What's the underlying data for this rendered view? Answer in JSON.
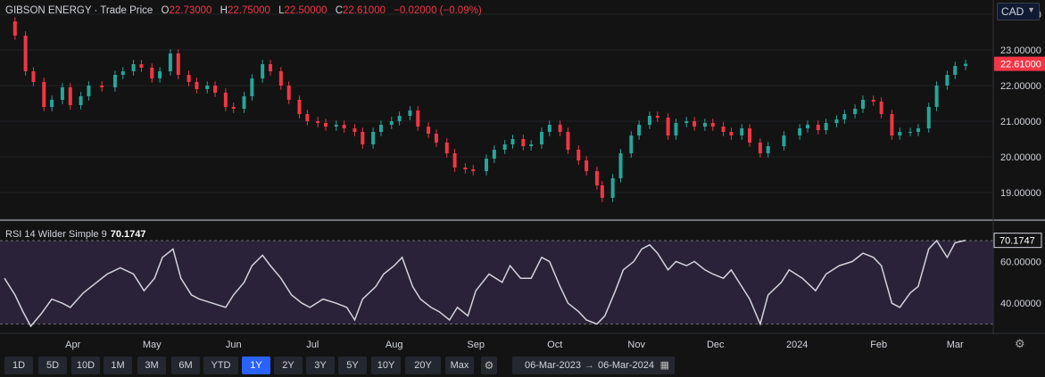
{
  "header": {
    "title": "GIBSON ENERGY · Trade Price",
    "open_label": "O",
    "open": "22.73000",
    "high_label": "H",
    "high": "22.75000",
    "low_label": "L",
    "low": "22.50000",
    "close_label": "C",
    "close": "22.61000",
    "change": "−0.02000 (−0.09%)"
  },
  "currency": {
    "value": "CAD",
    "icon": "chevron-down-icon"
  },
  "rsi": {
    "label": "RSI 14 Wilder Simple 9",
    "value": "70.1747"
  },
  "colors": {
    "up": "#26a69a",
    "down": "#f23645",
    "rsi_line": "#d1d4dc",
    "rsi_band": "#2a2238",
    "bg": "#131313"
  },
  "toolbar": {
    "periods": [
      "1D",
      "5D",
      "10D",
      "1M",
      "3M",
      "6M",
      "YTD",
      "1Y",
      "2Y",
      "3Y",
      "5Y",
      "10Y",
      "20Y",
      "Max"
    ],
    "selected": "1Y",
    "range_from": "06-Mar-2023",
    "range_sep": "→",
    "range_to": "06-Mar-2024"
  },
  "chart_data": [
    {
      "type": "candlestick",
      "title": "GIBSON ENERGY · Trade Price",
      "ylim": [
        18.4,
        24.1
      ],
      "y_ticks": [
        "24.00000",
        "23.00000",
        "22.00000",
        "21.00000",
        "20.00000",
        "19.00000"
      ],
      "last_price": "22.61000",
      "x_ticks": [
        "Apr",
        "May",
        "Jun",
        "Jul",
        "Aug",
        "Sep",
        "Oct",
        "Nov",
        "Dec",
        "2024",
        "Feb",
        "Mar"
      ],
      "x_range": [
        "2023-03-06",
        "2024-03-06"
      ],
      "close_points": [
        [
          "2023-03-06",
          23.8
        ],
        [
          "2023-03-10",
          23.4
        ],
        [
          "2023-03-14",
          22.4
        ],
        [
          "2023-03-17",
          22.1
        ],
        [
          "2023-03-21",
          21.4
        ],
        [
          "2023-03-24",
          21.6
        ],
        [
          "2023-03-28",
          21.95
        ],
        [
          "2023-03-31",
          21.45
        ],
        [
          "2023-04-04",
          21.7
        ],
        [
          "2023-04-07",
          22.0
        ],
        [
          "2023-04-12",
          21.95
        ],
        [
          "2023-04-17",
          22.3
        ],
        [
          "2023-04-20",
          22.4
        ],
        [
          "2023-04-24",
          22.6
        ],
        [
          "2023-04-27",
          22.5
        ],
        [
          "2023-05-01",
          22.2
        ],
        [
          "2023-05-04",
          22.4
        ],
        [
          "2023-05-08",
          22.9
        ],
        [
          "2023-05-11",
          22.3
        ],
        [
          "2023-05-15",
          22.1
        ],
        [
          "2023-05-18",
          21.9
        ],
        [
          "2023-05-22",
          22.0
        ],
        [
          "2023-05-25",
          21.8
        ],
        [
          "2023-05-29",
          21.4
        ],
        [
          "2023-06-01",
          21.35
        ],
        [
          "2023-06-05",
          21.7
        ],
        [
          "2023-06-08",
          22.2
        ],
        [
          "2023-06-12",
          22.6
        ],
        [
          "2023-06-15",
          22.4
        ],
        [
          "2023-06-19",
          22.0
        ],
        [
          "2023-06-22",
          21.6
        ],
        [
          "2023-06-26",
          21.2
        ],
        [
          "2023-06-29",
          21.0
        ],
        [
          "2023-07-03",
          20.95
        ],
        [
          "2023-07-06",
          20.85
        ],
        [
          "2023-07-10",
          20.9
        ],
        [
          "2023-07-13",
          20.8
        ],
        [
          "2023-07-17",
          20.7
        ],
        [
          "2023-07-20",
          20.35
        ],
        [
          "2023-07-24",
          20.7
        ],
        [
          "2023-07-27",
          20.9
        ],
        [
          "2023-07-31",
          21.0
        ],
        [
          "2023-08-03",
          21.15
        ],
        [
          "2023-08-07",
          21.3
        ],
        [
          "2023-08-10",
          20.85
        ],
        [
          "2023-08-14",
          20.65
        ],
        [
          "2023-08-17",
          20.4
        ],
        [
          "2023-08-21",
          20.1
        ],
        [
          "2023-08-24",
          19.7
        ],
        [
          "2023-08-28",
          19.65
        ],
        [
          "2023-08-31",
          19.6
        ],
        [
          "2023-09-05",
          19.95
        ],
        [
          "2023-09-08",
          20.2
        ],
        [
          "2023-09-12",
          20.35
        ],
        [
          "2023-09-15",
          20.5
        ],
        [
          "2023-09-19",
          20.3
        ],
        [
          "2023-09-22",
          20.35
        ],
        [
          "2023-09-26",
          20.7
        ],
        [
          "2023-09-29",
          20.9
        ],
        [
          "2023-10-03",
          20.7
        ],
        [
          "2023-10-06",
          20.2
        ],
        [
          "2023-10-10",
          19.9
        ],
        [
          "2023-10-13",
          19.6
        ],
        [
          "2023-10-17",
          19.2
        ],
        [
          "2023-10-19",
          18.85
        ],
        [
          "2023-10-23",
          19.4
        ],
        [
          "2023-10-26",
          20.1
        ],
        [
          "2023-10-30",
          20.6
        ],
        [
          "2023-11-02",
          20.9
        ],
        [
          "2023-11-06",
          21.15
        ],
        [
          "2023-11-09",
          21.1
        ],
        [
          "2023-11-13",
          20.6
        ],
        [
          "2023-11-16",
          20.95
        ],
        [
          "2023-11-20",
          21.0
        ],
        [
          "2023-11-23",
          20.85
        ],
        [
          "2023-11-27",
          20.95
        ],
        [
          "2023-11-30",
          20.85
        ],
        [
          "2023-12-04",
          20.7
        ],
        [
          "2023-12-07",
          20.6
        ],
        [
          "2023-12-11",
          20.8
        ],
        [
          "2023-12-14",
          20.4
        ],
        [
          "2023-12-18",
          20.1
        ],
        [
          "2023-12-21",
          20.3
        ],
        [
          "2023-12-27",
          20.6
        ],
        [
          "2024-01-02",
          20.8
        ],
        [
          "2024-01-05",
          20.9
        ],
        [
          "2024-01-09",
          20.75
        ],
        [
          "2024-01-12",
          20.95
        ],
        [
          "2024-01-16",
          21.05
        ],
        [
          "2024-01-19",
          21.2
        ],
        [
          "2024-01-23",
          21.35
        ],
        [
          "2024-01-26",
          21.6
        ],
        [
          "2024-01-30",
          21.55
        ],
        [
          "2024-02-02",
          21.2
        ],
        [
          "2024-02-06",
          20.6
        ],
        [
          "2024-02-09",
          20.7
        ],
        [
          "2024-02-13",
          20.7
        ],
        [
          "2024-02-16",
          20.8
        ],
        [
          "2024-02-20",
          21.4
        ],
        [
          "2024-02-23",
          22.0
        ],
        [
          "2024-02-27",
          22.3
        ],
        [
          "2024-03-01",
          22.55
        ],
        [
          "2024-03-05",
          22.61
        ]
      ]
    },
    {
      "type": "line",
      "title": "RSI 14 Wilder Simple 9",
      "ylim": [
        26,
        76
      ],
      "y_ticks": [
        "60.00000",
        "40.00000"
      ],
      "band": [
        30,
        70
      ],
      "last_value": "70.1747",
      "points": [
        [
          "2023-03-06",
          52
        ],
        [
          "2023-03-10",
          44
        ],
        [
          "2023-03-13",
          36
        ],
        [
          "2023-03-16",
          29
        ],
        [
          "2023-03-20",
          35
        ],
        [
          "2023-03-24",
          42
        ],
        [
          "2023-03-28",
          40
        ],
        [
          "2023-03-31",
          38
        ],
        [
          "2023-04-05",
          45
        ],
        [
          "2023-04-10",
          50
        ],
        [
          "2023-04-14",
          54
        ],
        [
          "2023-04-19",
          57
        ],
        [
          "2023-04-24",
          54
        ],
        [
          "2023-04-28",
          46
        ],
        [
          "2023-05-02",
          52
        ],
        [
          "2023-05-05",
          62
        ],
        [
          "2023-05-09",
          66
        ],
        [
          "2023-05-12",
          52
        ],
        [
          "2023-05-16",
          44
        ],
        [
          "2023-05-19",
          42
        ],
        [
          "2023-05-24",
          40
        ],
        [
          "2023-05-29",
          38
        ],
        [
          "2023-06-01",
          44
        ],
        [
          "2023-06-05",
          50
        ],
        [
          "2023-06-08",
          58
        ],
        [
          "2023-06-12",
          63
        ],
        [
          "2023-06-15",
          58
        ],
        [
          "2023-06-19",
          52
        ],
        [
          "2023-06-23",
          44
        ],
        [
          "2023-06-27",
          40
        ],
        [
          "2023-06-30",
          38
        ],
        [
          "2023-07-05",
          42
        ],
        [
          "2023-07-10",
          40
        ],
        [
          "2023-07-14",
          38
        ],
        [
          "2023-07-17",
          32
        ],
        [
          "2023-07-20",
          42
        ],
        [
          "2023-07-25",
          48
        ],
        [
          "2023-07-28",
          54
        ],
        [
          "2023-08-01",
          58
        ],
        [
          "2023-08-04",
          62
        ],
        [
          "2023-08-08",
          48
        ],
        [
          "2023-08-11",
          42
        ],
        [
          "2023-08-15",
          38
        ],
        [
          "2023-08-18",
          36
        ],
        [
          "2023-08-22",
          32
        ],
        [
          "2023-08-25",
          38
        ],
        [
          "2023-08-29",
          34
        ],
        [
          "2023-09-01",
          46
        ],
        [
          "2023-09-06",
          54
        ],
        [
          "2023-09-11",
          50
        ],
        [
          "2023-09-14",
          58
        ],
        [
          "2023-09-18",
          52
        ],
        [
          "2023-09-22",
          52
        ],
        [
          "2023-09-26",
          62
        ],
        [
          "2023-09-29",
          60
        ],
        [
          "2023-10-03",
          48
        ],
        [
          "2023-10-06",
          40
        ],
        [
          "2023-10-10",
          36
        ],
        [
          "2023-10-13",
          32
        ],
        [
          "2023-10-17",
          30
        ],
        [
          "2023-10-20",
          34
        ],
        [
          "2023-10-24",
          46
        ],
        [
          "2023-10-27",
          56
        ],
        [
          "2023-10-31",
          60
        ],
        [
          "2023-11-03",
          66
        ],
        [
          "2023-11-06",
          68
        ],
        [
          "2023-11-09",
          64
        ],
        [
          "2023-11-13",
          56
        ],
        [
          "2023-11-16",
          60
        ],
        [
          "2023-11-20",
          58
        ],
        [
          "2023-11-23",
          60
        ],
        [
          "2023-11-27",
          56
        ],
        [
          "2023-11-30",
          54
        ],
        [
          "2023-12-04",
          52
        ],
        [
          "2023-12-07",
          56
        ],
        [
          "2023-12-11",
          48
        ],
        [
          "2023-12-14",
          42
        ],
        [
          "2023-12-18",
          30
        ],
        [
          "2023-12-21",
          44
        ],
        [
          "2023-12-26",
          50
        ],
        [
          "2023-12-29",
          56
        ],
        [
          "2024-01-03",
          52
        ],
        [
          "2024-01-08",
          46
        ],
        [
          "2024-01-12",
          54
        ],
        [
          "2024-01-17",
          58
        ],
        [
          "2024-01-22",
          60
        ],
        [
          "2024-01-26",
          64
        ],
        [
          "2024-01-30",
          62
        ],
        [
          "2024-02-02",
          58
        ],
        [
          "2024-02-06",
          40
        ],
        [
          "2024-02-09",
          38
        ],
        [
          "2024-02-13",
          45
        ],
        [
          "2024-02-16",
          48
        ],
        [
          "2024-02-20",
          66
        ],
        [
          "2024-02-23",
          70
        ],
        [
          "2024-02-27",
          62
        ],
        [
          "2024-03-01",
          69
        ],
        [
          "2024-03-05",
          70.17
        ]
      ]
    }
  ]
}
